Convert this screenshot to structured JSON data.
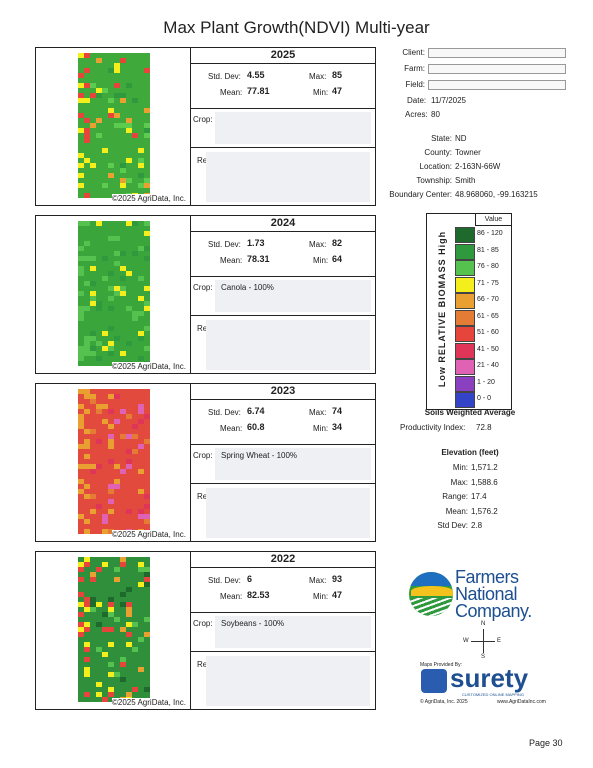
{
  "title": "Max Plant Growth(NDVI) Multi-year",
  "panels": [
    {
      "year": "2025",
      "std_dev_label": "Std. Dev:",
      "std_dev": "4.55",
      "max_label": "Max:",
      "max": "85",
      "mean_label": "Mean:",
      "mean": "77.81",
      "min_label": "Min:",
      "min": "47",
      "crop_label": "Crop:",
      "remarks_label": "Remarks",
      "copyright": "©2025 AgriData, Inc."
    },
    {
      "year": "2024",
      "std_dev_label": "Std. Dev:",
      "std_dev": "1.73",
      "max_label": "Max:",
      "max": "82",
      "mean_label": "Mean:",
      "mean": "78.31",
      "min_label": "Min:",
      "min": "64",
      "crop_label": "Crop:",
      "crop": "Canola - 100%",
      "remarks_label": "Remarks",
      "copyright": "©2025 AgriData, Inc."
    },
    {
      "year": "2023",
      "std_dev_label": "Std. Dev:",
      "std_dev": "6.74",
      "max_label": "Max:",
      "max": "74",
      "mean_label": "Mean:",
      "mean": "60.8",
      "min_label": "Min:",
      "min": "34",
      "crop_label": "Crop:",
      "crop": "Spring Wheat - 100%",
      "remarks_label": "Remarks",
      "copyright": "©2025 AgriData, Inc."
    },
    {
      "year": "2022",
      "std_dev_label": "Std. Dev:",
      "std_dev": "6",
      "max_label": "Max:",
      "max": "93",
      "mean_label": "Mean:",
      "mean": "82.53",
      "min_label": "Min:",
      "min": "47",
      "crop_label": "Crop:",
      "crop": "Soybeans - 100%",
      "remarks_label": "Remarks",
      "copyright": "©2025 AgriData, Inc."
    }
  ],
  "fields": [
    {
      "label": "Client:"
    },
    {
      "label": "Farm:"
    },
    {
      "label": "Field:"
    }
  ],
  "date": {
    "label": "Date:",
    "value": "11/7/2025"
  },
  "acres": {
    "label": "Acres:",
    "value": "80"
  },
  "location": [
    {
      "label": "State:",
      "value": "ND"
    },
    {
      "label": "County:",
      "value": "Towner"
    },
    {
      "label": "Location:",
      "value": "2-163N-66W"
    },
    {
      "label": "Township:",
      "value": "Smith"
    },
    {
      "label": "Boundary Center:",
      "value": "48.968060, -99.163215"
    }
  ],
  "legend": {
    "header": "Value",
    "axis_label": "Low RELATIVE BIOMASS High",
    "rows": [
      {
        "label": "86 - 120",
        "color": "#1d6a2c"
      },
      {
        "label": "81 - 85",
        "color": "#2f9a3d"
      },
      {
        "label": "76 - 80",
        "color": "#55c24f"
      },
      {
        "label": "71 - 75",
        "color": "#f3ee1c"
      },
      {
        "label": "66 - 70",
        "color": "#e9a030"
      },
      {
        "label": "61 - 65",
        "color": "#e57c35"
      },
      {
        "label": "51 - 60",
        "color": "#e6453b"
      },
      {
        "label": "41 - 50",
        "color": "#de3559"
      },
      {
        "label": "21 - 40",
        "color": "#e062b4"
      },
      {
        "label": "1 - 20",
        "color": "#8b40bf"
      },
      {
        "label": "0 - 0",
        "color": "#3345c6"
      }
    ]
  },
  "soils": {
    "title": "Soils Weighted Average",
    "label": "Productivity Index:",
    "value": "72.8"
  },
  "elevation": {
    "title": "Elevation (feet)",
    "rows": [
      {
        "label": "Min:",
        "value": "1,571.2"
      },
      {
        "label": "Max:",
        "value": "1,588.6"
      },
      {
        "label": "Range:",
        "value": "17.4"
      },
      {
        "label": "Mean:",
        "value": "1,576.2"
      },
      {
        "label": "Std Dev:",
        "value": "2.8"
      }
    ]
  },
  "logo": {
    "lines": [
      "Farmers",
      "National",
      "Company."
    ]
  },
  "compass": {
    "n": "N",
    "e": "E",
    "s": "S",
    "w": "W"
  },
  "surety": {
    "provided": "Maps Provided By:",
    "brand": "surety",
    "tagline": "CUSTOMIZED ONLINE MAPPING",
    "copyright": "© AgriData, Inc. 2025",
    "url": "www.AgriDataInc.com"
  },
  "page": "Page 30"
}
